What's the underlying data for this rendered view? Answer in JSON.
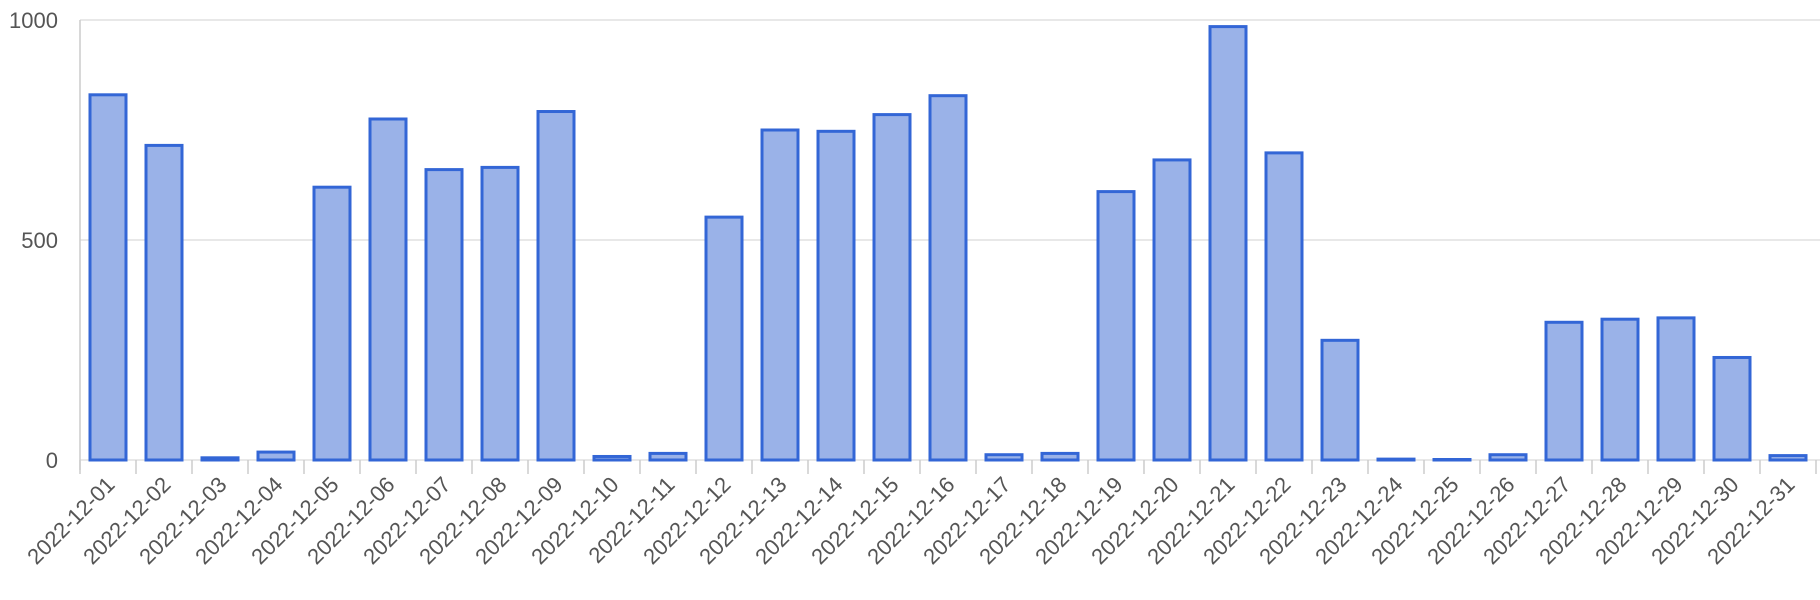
{
  "chart_data": {
    "type": "bar",
    "title": "",
    "xlabel": "",
    "ylabel": "",
    "ylim": [
      0,
      1000
    ],
    "yticks": [
      0,
      500,
      1000
    ],
    "grid": true,
    "categories": [
      "2022-12-01",
      "2022-12-02",
      "2022-12-03",
      "2022-12-04",
      "2022-12-05",
      "2022-12-06",
      "2022-12-07",
      "2022-12-08",
      "2022-12-09",
      "2022-12-10",
      "2022-12-11",
      "2022-12-12",
      "2022-12-13",
      "2022-12-14",
      "2022-12-15",
      "2022-12-16",
      "2022-12-17",
      "2022-12-18",
      "2022-12-19",
      "2022-12-20",
      "2022-12-21",
      "2022-12-22",
      "2022-12-23",
      "2022-12-24",
      "2022-12-25",
      "2022-12-26",
      "2022-12-27",
      "2022-12-28",
      "2022-12-29",
      "2022-12-30",
      "2022-12-31"
    ],
    "values": [
      830,
      715,
      5,
      18,
      620,
      775,
      660,
      665,
      792,
      8,
      15,
      552,
      750,
      747,
      785,
      828,
      12,
      15,
      610,
      682,
      985,
      698,
      272,
      2,
      0,
      12,
      313,
      320,
      323,
      233,
      10
    ],
    "colors": {
      "bar_fill": "#9ab2e8",
      "bar_stroke": "#3366d6",
      "grid": "#e0e0e0",
      "axis": "#cccccc",
      "text": "#555555"
    }
  }
}
